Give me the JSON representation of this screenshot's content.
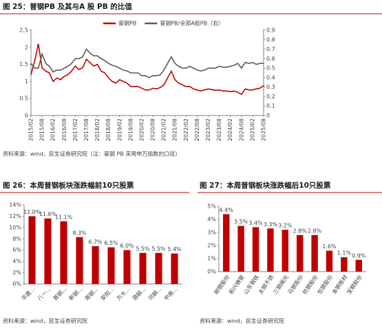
{
  "chart_data": [
    {
      "type": "line",
      "title": "图 25：普钢PB 及其与A 股 PB 的比值",
      "source": "资料来源：wind，民生证券研究院（注：普钢 PB 采用申万指数的口径）",
      "categories": [
        "2015/02",
        null,
        null,
        "2015/08",
        null,
        null,
        "2016/02",
        null,
        null,
        "2016/08",
        null,
        null,
        "2017/02",
        null,
        null,
        "2017/08",
        null,
        null,
        "2018/02",
        null,
        null,
        "2018/08",
        null,
        null,
        "2019/02",
        null,
        null,
        "2019/08",
        null,
        null,
        "2020/02",
        null,
        null,
        "2020/08",
        null,
        null,
        "2021/02",
        null,
        null,
        "2021/08",
        null,
        null,
        "2022/02",
        null,
        null,
        "2022/08",
        null,
        null,
        "2023/02",
        null,
        null,
        "2023/08",
        null,
        null,
        "2024/02",
        null,
        null,
        "2024/08",
        null,
        null,
        "2025/02",
        null,
        null,
        "2025/08"
      ],
      "series": [
        {
          "name": "普钢PB",
          "color": "#c00000",
          "values": [
            1.2,
            1.6,
            2.1,
            1.4,
            1.3,
            1.25,
            1.0,
            1.1,
            1.05,
            1.15,
            1.2,
            1.3,
            1.45,
            1.35,
            1.4,
            1.65,
            1.55,
            1.45,
            1.5,
            1.3,
            1.25,
            1.1,
            1.0,
            0.95,
            1.05,
            1.0,
            0.95,
            0.85,
            0.85,
            0.85,
            0.8,
            0.75,
            0.75,
            0.8,
            0.78,
            0.82,
            0.9,
            1.1,
            1.3,
            1.05,
            0.95,
            0.9,
            0.85,
            0.85,
            0.78,
            0.75,
            0.72,
            0.75,
            0.78,
            0.76,
            0.74,
            0.75,
            0.72,
            0.72,
            0.7,
            0.72,
            0.68,
            0.62,
            0.78,
            0.75,
            0.75,
            0.78,
            0.8,
            0.88
          ]
        },
        {
          "name": "普钢PB/全部A股PB（右）",
          "color": "#595959",
          "axis": "y2",
          "values": [
            0.55,
            0.5,
            0.5,
            0.65,
            0.55,
            0.52,
            0.46,
            0.48,
            0.48,
            0.5,
            0.52,
            0.55,
            0.6,
            0.6,
            0.62,
            0.7,
            0.66,
            0.63,
            0.63,
            0.6,
            0.58,
            0.55,
            0.53,
            0.52,
            0.5,
            0.48,
            0.47,
            0.45,
            0.45,
            0.45,
            0.42,
            0.42,
            0.4,
            0.42,
            0.42,
            0.43,
            0.48,
            0.55,
            0.62,
            0.55,
            0.52,
            0.5,
            0.5,
            0.52,
            0.5,
            0.48,
            0.47,
            0.48,
            0.5,
            0.5,
            0.5,
            0.52,
            0.51,
            0.51,
            0.52,
            0.53,
            0.55,
            0.5,
            0.56,
            0.55,
            0.56,
            0.54,
            0.55,
            0.55
          ]
        }
      ],
      "ylim": [
        0,
        2.5
      ],
      "yticks": [
        0,
        0.5,
        1,
        1.5,
        2,
        2.5
      ],
      "y2lim": [
        0,
        0.9
      ],
      "y2ticks": [
        0,
        0.1,
        0.2,
        0.3,
        0.4,
        0.5,
        0.6,
        0.7,
        0.8,
        0.9
      ]
    },
    {
      "type": "bar",
      "title": "图 26：本周普钢板块涨跌幅前10只股票",
      "source": "资料来源：wind，民生证券研究院",
      "categories": [
        "华菱...",
        "八一...",
        "首钢...",
        "新钢...",
        "南钢...",
        "安阳...",
        "方大...",
        "酒钢...",
        "河钢...",
        "中南..."
      ],
      "values": [
        12.0,
        11.6,
        11.1,
        8.3,
        6.7,
        6.5,
        6.0,
        5.5,
        5.5,
        5.4
      ],
      "value_labels": [
        "12.0%",
        "11.6%",
        "11.1%",
        "8.3%",
        "6.7%",
        "6.5%",
        "6.0%",
        "5.5%",
        "5.5%",
        "5.4%"
      ],
      "color": "#c00000",
      "ylim": [
        0,
        14
      ],
      "yticks": [
        {
          "value": 0,
          "label": "0%"
        },
        {
          "value": 2,
          "label": "2%"
        },
        {
          "value": 4,
          "label": "4%"
        },
        {
          "value": 6,
          "label": "6%"
        },
        {
          "value": 8,
          "label": "8%"
        },
        {
          "value": 10,
          "label": "10%"
        },
        {
          "value": 12,
          "label": "12%"
        },
        {
          "value": 14,
          "label": "14%"
        }
      ]
    },
    {
      "type": "bar",
      "title": "图 27：本周普钢板块涨跌幅后10只股票",
      "source": "资料来源：wind，民生证券研究院",
      "categories": [
        "柳钢股份",
        "新兴铸管",
        "山东钢铁",
        "太钢不锈",
        "三钢闽光",
        "马钢股份",
        "杭钢股份",
        "包钢股份",
        "本钢板材",
        "宝钢股份"
      ],
      "values": [
        4.4,
        3.5,
        3.4,
        3.3,
        3.2,
        2.8,
        2.8,
        1.6,
        1.1,
        0.9
      ],
      "value_labels": [
        "4.4%",
        "3.5%",
        "3.4%",
        "3.3%",
        "3.2%",
        "2.8%",
        "2.8%",
        "1.6%",
        "1.1%",
        "0.9%"
      ],
      "color": "#c00000",
      "ylim": [
        0,
        5
      ],
      "yticks": [
        {
          "value": 0,
          "label": "0%"
        },
        {
          "value": 1,
          "label": "1%"
        },
        {
          "value": 2,
          "label": "2%"
        },
        {
          "value": 3,
          "label": "3%"
        },
        {
          "value": 4,
          "label": "4%"
        },
        {
          "value": 5,
          "label": "5%"
        }
      ]
    }
  ]
}
